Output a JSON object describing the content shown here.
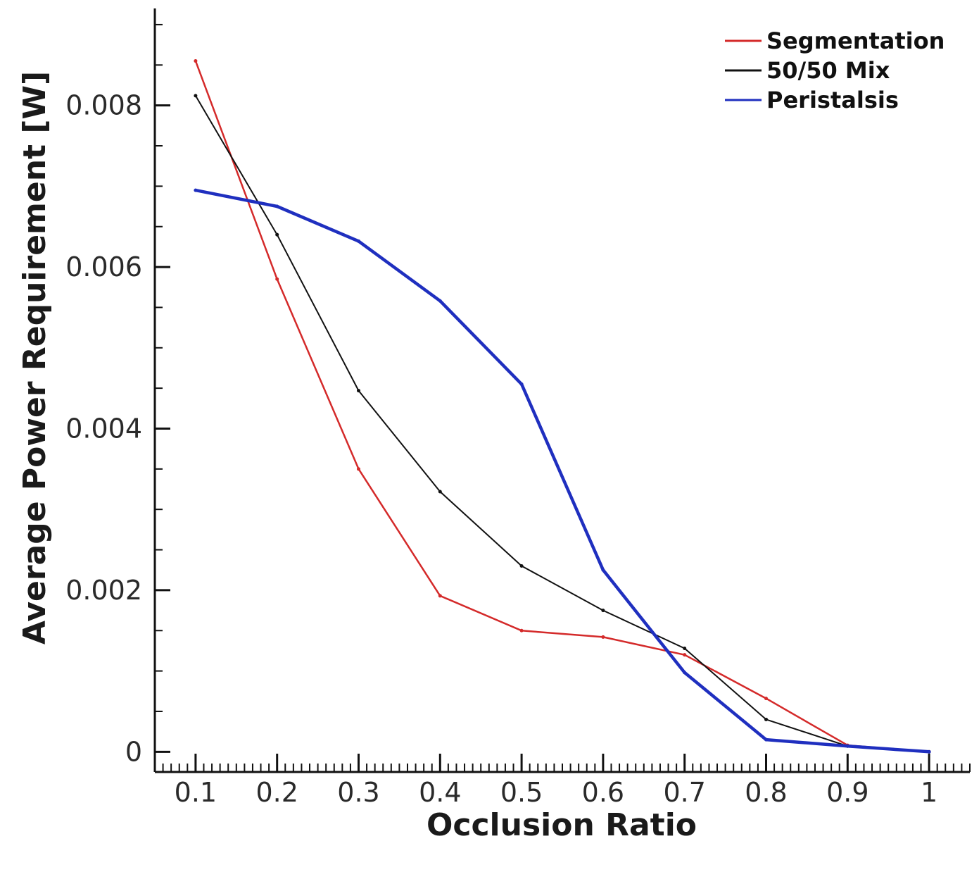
{
  "chart_data": {
    "type": "line",
    "title": "",
    "xlabel": "Occlusion Ratio",
    "ylabel": "Average Power Requirement [W]",
    "xlim": [
      0.05,
      1.05
    ],
    "ylim": [
      -0.00025,
      0.0092
    ],
    "x_ticks": [
      0.1,
      0.2,
      0.3,
      0.4,
      0.5,
      0.6,
      0.7,
      0.8,
      0.9,
      1
    ],
    "x_tick_labels": [
      "0.1",
      "0.2",
      "0.3",
      "0.4",
      "0.5",
      "0.6",
      "0.7",
      "0.8",
      "0.9",
      "1"
    ],
    "y_ticks": [
      0,
      0.002,
      0.004,
      0.006,
      0.008
    ],
    "y_tick_labels": [
      "0",
      "0.002",
      "0.004",
      "0.006",
      "0.008"
    ],
    "grid": false,
    "legend_position": "top-right",
    "x": [
      0.1,
      0.2,
      0.3,
      0.4,
      0.5,
      0.6,
      0.7,
      0.8,
      0.9,
      1.0
    ],
    "series": [
      {
        "name": "Segmentation",
        "color": "#d42a2a",
        "values": [
          0.00855,
          0.00585,
          0.0035,
          0.00193,
          0.0015,
          0.00142,
          0.0012,
          0.00066,
          8e-05,
          0.0
        ]
      },
      {
        "name": "50/50 Mix",
        "color": "#111111",
        "values": [
          0.00812,
          0.0064,
          0.00447,
          0.00322,
          0.0023,
          0.00175,
          0.00128,
          0.0004,
          7e-05,
          0.0
        ]
      },
      {
        "name": "Peristalsis",
        "color": "#1f2fbf",
        "values": [
          0.00695,
          0.00675,
          0.00632,
          0.00558,
          0.00455,
          0.00225,
          0.00098,
          0.00015,
          7e-05,
          0.0
        ]
      }
    ]
  }
}
